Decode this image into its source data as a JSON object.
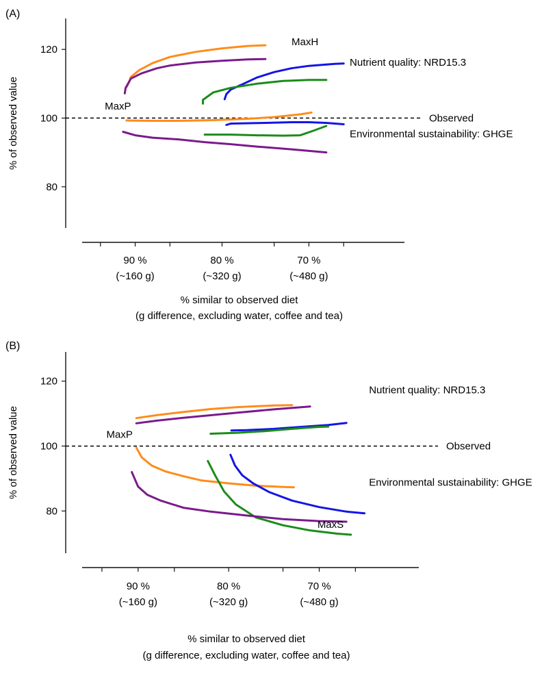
{
  "chart_data": [
    {
      "type": "line",
      "panel_label": "(A)",
      "ylabel": "% of observed value",
      "xlabel_line1": "% similar to observed diet",
      "xlabel_line2": "(g difference, excluding water, coffee and tea)",
      "ylim": [
        68,
        129
      ],
      "xlim": [
        98,
        59
      ],
      "yticks": [
        {
          "value": 80,
          "label": "80"
        },
        {
          "value": 100,
          "label": "100"
        },
        {
          "value": 120,
          "label": "120"
        }
      ],
      "xticks": [
        {
          "value": 90,
          "label": "90 %",
          "sublabel": "(~160 g)"
        },
        {
          "value": 80,
          "label": "80 %",
          "sublabel": "(~320 g)"
        },
        {
          "value": 70,
          "label": "70 %",
          "sublabel": "(~480 g)"
        }
      ],
      "minor_xticks": [
        94,
        86,
        74,
        66
      ],
      "reference_line": {
        "y": 100,
        "label": "Observed"
      },
      "annotations": [
        {
          "text": "MaxH",
          "x": 72,
          "y": 121.2
        },
        {
          "text": "MaxP",
          "x": 93.5,
          "y": 102.5
        },
        {
          "text": "Nutrient quality: NRD15.3",
          "x": 65.3,
          "y": 115.2
        },
        {
          "text": "Environmental sustainability: GHGE",
          "x": 65.3,
          "y": 94.4
        }
      ],
      "series": [
        {
          "color": "#ff8c1a",
          "points": [
            [
              91,
              109
            ],
            [
              90.7,
              110.5
            ],
            [
              90.5,
              112
            ],
            [
              89.5,
              114
            ],
            [
              88,
              116
            ],
            [
              86,
              117.8
            ],
            [
              83,
              119.3
            ],
            [
              80,
              120.3
            ],
            [
              77,
              121
            ],
            [
              75,
              121.2
            ]
          ]
        },
        {
          "color": "#7a1a8c",
          "points": [
            [
              91.2,
              107.2
            ],
            [
              91.1,
              108.8
            ],
            [
              90.5,
              111.5
            ],
            [
              89.3,
              113
            ],
            [
              87.5,
              114.5
            ],
            [
              86,
              115.3
            ],
            [
              83,
              116.2
            ],
            [
              80,
              116.7
            ],
            [
              77,
              117.1
            ],
            [
              75,
              117.2
            ]
          ]
        },
        {
          "color": "#1414e6",
          "points": [
            [
              79.7,
              105.5
            ],
            [
              79.5,
              107
            ],
            [
              79,
              108.3
            ],
            [
              77.5,
              110
            ],
            [
              76,
              111.8
            ],
            [
              74,
              113.4
            ],
            [
              72,
              114.5
            ],
            [
              70,
              115.2
            ],
            [
              67,
              115.8
            ],
            [
              66,
              115.9
            ]
          ]
        },
        {
          "color": "#1a8c1a",
          "points": [
            [
              82.2,
              104.2
            ],
            [
              82.2,
              105.3
            ],
            [
              81,
              107.5
            ],
            [
              79,
              108.8
            ],
            [
              76,
              110
            ],
            [
              73,
              110.8
            ],
            [
              70,
              111.1
            ],
            [
              68,
              111.1
            ]
          ]
        },
        {
          "color": "#ff8c1a",
          "points": [
            [
              91,
              99.3
            ],
            [
              88,
              99.2
            ],
            [
              85,
              99.2
            ],
            [
              81,
              99.4
            ],
            [
              77,
              99.8
            ],
            [
              74,
              100.3
            ],
            [
              71,
              101.1
            ],
            [
              69.7,
              101.6
            ]
          ]
        },
        {
          "color": "#1414e6",
          "points": [
            [
              79.5,
              98
            ],
            [
              79,
              98.4
            ],
            [
              77,
              98.5
            ],
            [
              75,
              98.6
            ],
            [
              72,
              98.8
            ],
            [
              70,
              98.8
            ],
            [
              68,
              98.6
            ],
            [
              66,
              98.2
            ]
          ]
        },
        {
          "color": "#1a8c1a",
          "points": [
            [
              82,
              95.2
            ],
            [
              79,
              95.2
            ],
            [
              76,
              95
            ],
            [
              73,
              94.9
            ],
            [
              71,
              95
            ],
            [
              69.5,
              96.3
            ],
            [
              68,
              97.7
            ]
          ]
        },
        {
          "color": "#7a1a8c",
          "points": [
            [
              91.4,
              96
            ],
            [
              90,
              95
            ],
            [
              88,
              94.3
            ],
            [
              85,
              93.8
            ],
            [
              82,
              93
            ],
            [
              79,
              92.4
            ],
            [
              76,
              91.7
            ],
            [
              72,
              90.9
            ],
            [
              68,
              90
            ]
          ]
        }
      ]
    },
    {
      "type": "line",
      "panel_label": "(B)",
      "ylabel": "% of observed value",
      "xlabel_line1": "% similar to observed diet",
      "xlabel_line2": "(g difference, excluding water, coffee and tea)",
      "ylim": [
        67,
        129
      ],
      "xlim": [
        98,
        59
      ],
      "yticks": [
        {
          "value": 80,
          "label": "80"
        },
        {
          "value": 100,
          "label": "100"
        },
        {
          "value": 120,
          "label": "120"
        }
      ],
      "xticks": [
        {
          "value": 90,
          "label": "90 %",
          "sublabel": "(~160 g)"
        },
        {
          "value": 80,
          "label": "80 %",
          "sublabel": "(~320 g)"
        },
        {
          "value": 70,
          "label": "70 %",
          "sublabel": "(~480 g)"
        }
      ],
      "minor_xticks": [
        94,
        86,
        74,
        66
      ],
      "reference_line": {
        "y": 100,
        "label": "Observed"
      },
      "annotations": [
        {
          "text": "MaxP",
          "x": 93.5,
          "y": 102.5
        },
        {
          "text": "MaxS",
          "x": 70.2,
          "y": 74.8
        },
        {
          "text": "Nutrient quality: NRD15.3",
          "x": 64.5,
          "y": 116.2
        },
        {
          "text": "Environmental sustainability: GHGE",
          "x": 64.5,
          "y": 87.8
        }
      ],
      "series": [
        {
          "color": "#ff8c1a",
          "points": [
            [
              90.2,
              108.6
            ],
            [
              88,
              109.5
            ],
            [
              85,
              110.5
            ],
            [
              82,
              111.4
            ],
            [
              79,
              112
            ],
            [
              75,
              112.5
            ],
            [
              73,
              112.6
            ]
          ]
        },
        {
          "color": "#7a1a8c",
          "points": [
            [
              90.2,
              107
            ],
            [
              88,
              107.8
            ],
            [
              85,
              108.7
            ],
            [
              82,
              109.5
            ],
            [
              79,
              110.3
            ],
            [
              75,
              111.3
            ],
            [
              71,
              112.2
            ]
          ]
        },
        {
          "color": "#1414e6",
          "points": [
            [
              79.7,
              104.8
            ],
            [
              78,
              104.9
            ],
            [
              75,
              105.3
            ],
            [
              72,
              105.9
            ],
            [
              69,
              106.5
            ],
            [
              67,
              107.1
            ]
          ]
        },
        {
          "color": "#1a8c1a",
          "points": [
            [
              82,
              103.8
            ],
            [
              79,
              104.1
            ],
            [
              76,
              104.6
            ],
            [
              73,
              105.3
            ],
            [
              70,
              105.9
            ],
            [
              69,
              106
            ]
          ]
        },
        {
          "color": "#ff8c1a",
          "points": [
            [
              90.2,
              99.5
            ],
            [
              89.6,
              96.5
            ],
            [
              88.5,
              94
            ],
            [
              87,
              92.2
            ],
            [
              85,
              90.7
            ],
            [
              83,
              89.4
            ],
            [
              80,
              88.5
            ],
            [
              77,
              87.8
            ],
            [
              74,
              87.4
            ],
            [
              72.8,
              87.3
            ]
          ]
        },
        {
          "color": "#1414e6",
          "points": [
            [
              79.8,
              97.3
            ],
            [
              79.3,
              94
            ],
            [
              78.5,
              91
            ],
            [
              77.3,
              88.5
            ],
            [
              75.5,
              85.8
            ],
            [
              73,
              83.2
            ],
            [
              70,
              81.2
            ],
            [
              67,
              79.8
            ],
            [
              65,
              79.3
            ]
          ]
        },
        {
          "color": "#1a8c1a",
          "points": [
            [
              82.3,
              95.4
            ],
            [
              81.5,
              91
            ],
            [
              80.5,
              86
            ],
            [
              79.2,
              82
            ],
            [
              77,
              78
            ],
            [
              74,
              75.6
            ],
            [
              71,
              74
            ],
            [
              68,
              73
            ],
            [
              66.5,
              72.7
            ]
          ]
        },
        {
          "color": "#7a1a8c",
          "points": [
            [
              90.7,
              92
            ],
            [
              90,
              87.5
            ],
            [
              89,
              85
            ],
            [
              87.5,
              83.2
            ],
            [
              85,
              81
            ],
            [
              82,
              79.8
            ],
            [
              78,
              78.6
            ],
            [
              74,
              77.5
            ],
            [
              70,
              76.9
            ],
            [
              67,
              76.7
            ]
          ]
        }
      ]
    }
  ]
}
